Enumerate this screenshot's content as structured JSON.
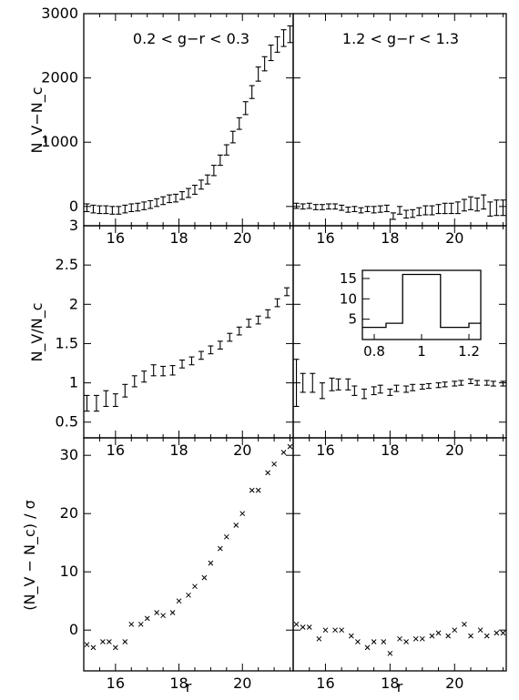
{
  "chart_data": [
    {
      "type": "errorbar",
      "panel": "top-left",
      "annotation": "0.2 < g−r < 0.3",
      "ylabel": "N_V−N_c",
      "xlim": [
        15,
        21.6
      ],
      "ylim": [
        -300,
        3000
      ],
      "xticks": [
        "16",
        "18",
        "20"
      ],
      "yticks": [
        "0",
        "1000",
        "2000",
        "3000"
      ],
      "x": [
        15.1,
        15.3,
        15.5,
        15.7,
        15.9,
        16.1,
        16.3,
        16.5,
        16.7,
        16.9,
        17.1,
        17.3,
        17.5,
        17.7,
        17.9,
        18.1,
        18.3,
        18.5,
        18.7,
        18.9,
        19.1,
        19.3,
        19.5,
        19.7,
        19.9,
        20.1,
        20.3,
        20.5,
        20.7,
        20.9,
        21.1,
        21.3,
        21.5
      ],
      "y": [
        -20,
        -40,
        -50,
        -50,
        -60,
        -60,
        -40,
        -20,
        -10,
        10,
        30,
        60,
        90,
        120,
        130,
        170,
        210,
        260,
        340,
        420,
        560,
        720,
        880,
        1080,
        1290,
        1530,
        1780,
        2060,
        2220,
        2390,
        2520,
        2620,
        2680
      ],
      "err": [
        60,
        60,
        60,
        60,
        60,
        60,
        60,
        60,
        60,
        60,
        60,
        60,
        60,
        60,
        60,
        60,
        70,
        70,
        70,
        70,
        80,
        80,
        80,
        90,
        90,
        100,
        100,
        110,
        110,
        120,
        120,
        130,
        130
      ]
    },
    {
      "type": "errorbar",
      "panel": "top-right",
      "annotation": "1.2 < g−r < 1.3",
      "xlim": [
        15,
        21.6
      ],
      "ylim": [
        -300,
        3000
      ],
      "xticks": [
        "16",
        "18",
        "20"
      ],
      "x": [
        15.1,
        15.3,
        15.5,
        15.7,
        15.9,
        16.1,
        16.3,
        16.5,
        16.7,
        16.9,
        17.1,
        17.3,
        17.5,
        17.7,
        17.9,
        18.1,
        18.3,
        18.5,
        18.7,
        18.9,
        19.1,
        19.3,
        19.5,
        19.7,
        19.9,
        20.1,
        20.3,
        20.5,
        20.7,
        20.9,
        21.1,
        21.3,
        21.5
      ],
      "y": [
        10,
        0,
        10,
        -10,
        -10,
        0,
        0,
        -20,
        -50,
        -40,
        -60,
        -40,
        -50,
        -40,
        -30,
        -150,
        -60,
        -120,
        -110,
        -80,
        -60,
        -60,
        -40,
        -30,
        -30,
        -20,
        20,
        50,
        30,
        70,
        -40,
        -20,
        -20
      ],
      "err": [
        40,
        40,
        40,
        40,
        40,
        40,
        40,
        40,
        40,
        40,
        40,
        40,
        50,
        50,
        50,
        50,
        60,
        60,
        60,
        60,
        70,
        70,
        70,
        80,
        80,
        90,
        90,
        100,
        100,
        110,
        110,
        120,
        120
      ]
    },
    {
      "type": "errorbar",
      "panel": "middle-left",
      "ylabel": "N_V/N_c",
      "xlim": [
        15,
        21.6
      ],
      "ylim": [
        0.3,
        3
      ],
      "xticks": [
        "16",
        "18",
        "20"
      ],
      "yticks": [
        "0.5",
        "1",
        "1.5",
        "2",
        "2.5",
        "3"
      ],
      "x": [
        15.1,
        15.4,
        15.7,
        16.0,
        16.3,
        16.6,
        16.9,
        17.2,
        17.5,
        17.8,
        18.1,
        18.4,
        18.7,
        19.0,
        19.3,
        19.6,
        19.9,
        20.2,
        20.5,
        20.8,
        21.1,
        21.4
      ],
      "y": [
        0.74,
        0.74,
        0.8,
        0.78,
        0.9,
        1.02,
        1.08,
        1.16,
        1.15,
        1.16,
        1.24,
        1.28,
        1.35,
        1.42,
        1.48,
        1.58,
        1.66,
        1.76,
        1.8,
        1.88,
        2.02,
        2.16
      ],
      "err": [
        0.1,
        0.1,
        0.1,
        0.08,
        0.08,
        0.07,
        0.07,
        0.07,
        0.06,
        0.06,
        0.05,
        0.05,
        0.05,
        0.05,
        0.05,
        0.05,
        0.05,
        0.05,
        0.05,
        0.05,
        0.05,
        0.05
      ]
    },
    {
      "type": "errorbar",
      "panel": "middle-right",
      "xlim": [
        15,
        21.6
      ],
      "ylim": [
        0.3,
        3
      ],
      "xticks": [
        "16",
        "18",
        "20"
      ],
      "x": [
        15.1,
        15.3,
        15.6,
        15.9,
        16.2,
        16.4,
        16.7,
        16.9,
        17.2,
        17.5,
        17.7,
        18.0,
        18.2,
        18.5,
        18.7,
        19.0,
        19.2,
        19.5,
        19.7,
        20.0,
        20.2,
        20.5,
        20.7,
        21.0,
        21.2,
        21.5
      ],
      "y": [
        1.0,
        1.0,
        1.0,
        0.9,
        0.98,
        0.98,
        0.98,
        0.9,
        0.86,
        0.9,
        0.92,
        0.88,
        0.93,
        0.92,
        0.94,
        0.95,
        0.96,
        0.97,
        0.98,
        0.99,
        1.0,
        1.02,
        1.0,
        1.0,
        0.99,
        0.99
      ],
      "err": [
        0.3,
        0.12,
        0.12,
        0.1,
        0.08,
        0.07,
        0.07,
        0.06,
        0.06,
        0.05,
        0.05,
        0.04,
        0.04,
        0.04,
        0.04,
        0.03,
        0.03,
        0.03,
        0.03,
        0.03,
        0.03,
        0.03,
        0.03,
        0.03,
        0.03,
        0.03
      ]
    },
    {
      "type": "step",
      "panel": "inset",
      "xlim": [
        0.75,
        1.25
      ],
      "ylim": [
        0,
        17
      ],
      "xticks": [
        "0.8",
        "1",
        "1.2"
      ],
      "yticks": [
        "5",
        "10",
        "15"
      ],
      "steps": [
        [
          0.75,
          3
        ],
        [
          0.85,
          4
        ],
        [
          0.92,
          16
        ],
        [
          1.08,
          3
        ],
        [
          1.2,
          4
        ]
      ]
    },
    {
      "type": "scatter",
      "panel": "bottom-left",
      "ylabel": "(N_V − N_c) / σ",
      "xlabel": "r",
      "xlim": [
        15,
        21.6
      ],
      "ylim": [
        -7,
        33
      ],
      "xticks": [
        "16",
        "18",
        "20"
      ],
      "yticks": [
        "0",
        "10",
        "20",
        "30"
      ],
      "x": [
        15.1,
        15.3,
        15.6,
        15.8,
        16.0,
        16.3,
        16.5,
        16.8,
        17.0,
        17.3,
        17.5,
        17.8,
        18.0,
        18.3,
        18.5,
        18.8,
        19.0,
        19.3,
        19.5,
        19.8,
        20.0,
        20.3,
        20.5,
        20.8,
        21.0,
        21.3,
        21.5
      ],
      "y": [
        -2.5,
        -3,
        -2,
        -2,
        -3,
        -2,
        1,
        1,
        2,
        3,
        2.5,
        3,
        5,
        6,
        7.5,
        9,
        11.5,
        14,
        16,
        18,
        20,
        24,
        24,
        27,
        28.5,
        30.5,
        31.5
      ]
    },
    {
      "type": "scatter",
      "panel": "bottom-right",
      "xlabel": "r",
      "xlim": [
        15,
        21.6
      ],
      "ylim": [
        -7,
        33
      ],
      "xticks": [
        "16",
        "18",
        "20"
      ],
      "x": [
        15.1,
        15.3,
        15.5,
        15.8,
        16.0,
        16.3,
        16.5,
        16.8,
        17.0,
        17.3,
        17.5,
        17.8,
        18.0,
        18.3,
        18.5,
        18.8,
        19.0,
        19.3,
        19.5,
        19.8,
        20.0,
        20.3,
        20.5,
        20.8,
        21.0,
        21.3,
        21.5
      ],
      "y": [
        1,
        0.5,
        0.5,
        -1.5,
        0,
        0,
        0,
        -1,
        -2,
        -3,
        -2,
        -2,
        -4,
        -1.5,
        -2,
        -1.5,
        -1.5,
        -1,
        -0.5,
        -1,
        0,
        1,
        -1,
        0,
        -1,
        -0.5,
        -0.5
      ]
    }
  ]
}
